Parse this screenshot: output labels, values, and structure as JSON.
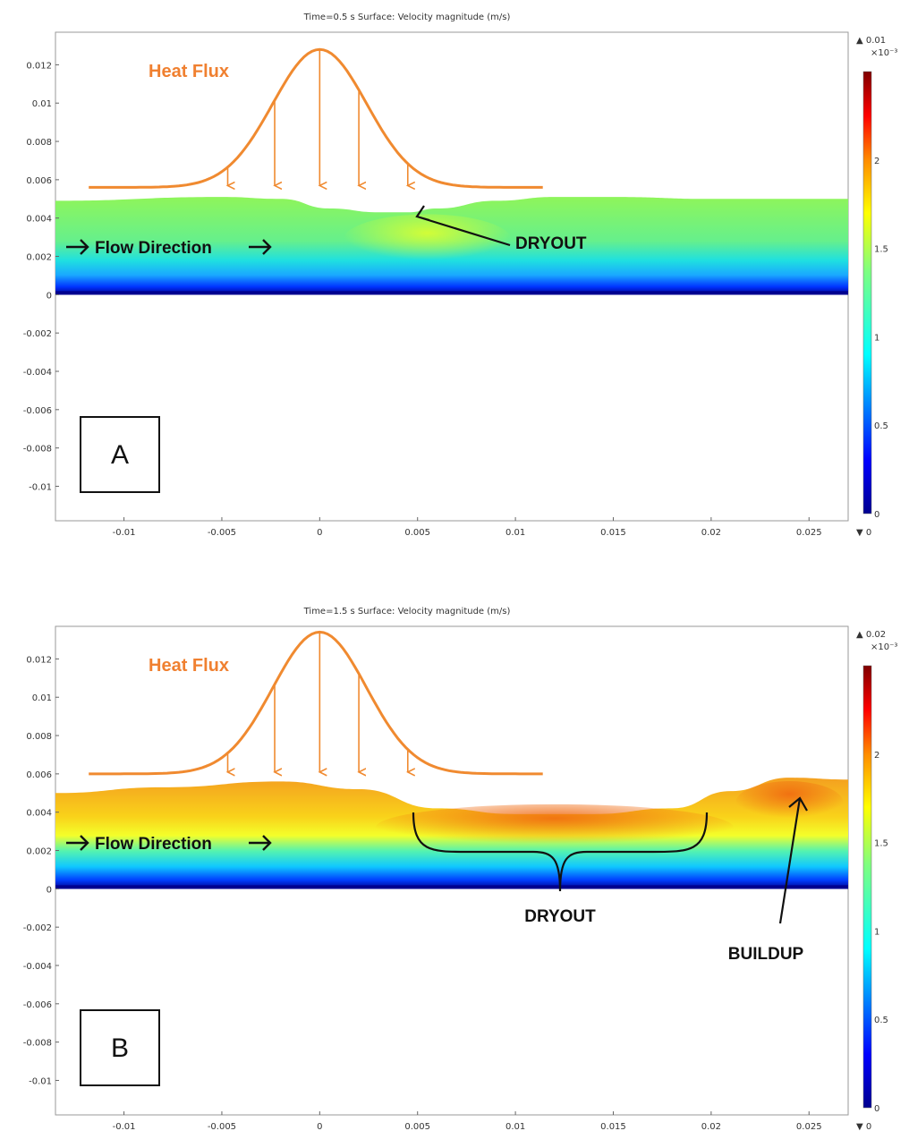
{
  "colors": {
    "heat_flux": "#f08a30",
    "annotation": "#111111",
    "axis_frame": "#9a9a9a"
  },
  "chart_data": [
    {
      "type": "heatmap",
      "panel_label": "A",
      "title": "Time=0.5 s   Surface: Velocity magnitude (m/s)",
      "x_ticks": [
        "-0.01",
        "-0.005",
        "0",
        "0.005",
        "0.01",
        "0.015",
        "0.02",
        "0.025"
      ],
      "y_ticks": [
        "0.012",
        "0.01",
        "0.008",
        "0.006",
        "0.004",
        "0.002",
        "0",
        "-0.002",
        "-0.004",
        "-0.006",
        "-0.008",
        "-0.01"
      ],
      "xlim": [
        -0.0135,
        0.027
      ],
      "ylim": [
        -0.0118,
        0.0137
      ],
      "colorbar": {
        "max_label": "▲ 0.01",
        "exponent": "×10⁻³",
        "min_label": "▼ 0",
        "ticks": [
          "2",
          "1.5",
          "1",
          "0.5",
          "0"
        ],
        "range": [
          0,
          2.5
        ]
      },
      "film_surface": {
        "x": [
          -0.0135,
          -0.005,
          -0.002,
          0.0005,
          0.003,
          0.0045,
          0.006,
          0.009,
          0.012,
          0.015,
          0.02,
          0.027
        ],
        "y": [
          0.0049,
          0.0051,
          0.005,
          0.0045,
          0.0043,
          0.0043,
          0.0045,
          0.0049,
          0.0051,
          0.0051,
          0.005,
          0.005
        ]
      },
      "surface_velocity_1e-3": [
        1.2,
        1.2,
        1.3,
        1.45,
        1.4,
        1.3,
        1.25,
        1.2
      ],
      "heat_flux_curve": {
        "peak_y": 0.0128,
        "base_y": 0.0056,
        "center_x": 0.0,
        "x_start": -0.0118,
        "x_end": 0.0115
      },
      "heat_flux_arrows_x": [
        -0.0047,
        -0.0023,
        0.0,
        0.002,
        0.0045
      ],
      "annotations": {
        "heat_flux": "Heat Flux",
        "flow": "Flow Direction",
        "dryout": "DRYOUT"
      }
    },
    {
      "type": "heatmap",
      "panel_label": "B",
      "title": "Time=1.5 s   Surface: Velocity magnitude (m/s)",
      "x_ticks": [
        "-0.01",
        "-0.005",
        "0",
        "0.005",
        "0.01",
        "0.015",
        "0.02",
        "0.025"
      ],
      "y_ticks": [
        "0.012",
        "0.01",
        "0.008",
        "0.006",
        "0.004",
        "0.002",
        "0",
        "-0.002",
        "-0.004",
        "-0.006",
        "-0.008",
        "-0.01"
      ],
      "xlim": [
        -0.0135,
        0.027
      ],
      "ylim": [
        -0.0118,
        0.0137
      ],
      "colorbar": {
        "max_label": "▲ 0.02",
        "exponent": "×10⁻³",
        "min_label": "▼ 0",
        "ticks": [
          "2",
          "1.5",
          "1",
          "0.5",
          "0"
        ],
        "range": [
          0,
          2.5
        ]
      },
      "film_surface": {
        "x": [
          -0.0135,
          -0.008,
          -0.002,
          0.002,
          0.006,
          0.01,
          0.014,
          0.018,
          0.021,
          0.024,
          0.027
        ],
        "y": [
          0.005,
          0.0053,
          0.0056,
          0.0052,
          0.0042,
          0.0039,
          0.0039,
          0.0042,
          0.0051,
          0.0058,
          0.0057
        ]
      },
      "surface_velocity_1e-3": [
        1.6,
        1.6,
        1.55,
        1.7,
        1.85,
        1.9,
        1.85,
        1.8,
        1.9
      ],
      "heat_flux_curve": {
        "peak_y": 0.0134,
        "base_y": 0.006,
        "center_x": 0.0,
        "x_start": -0.0118,
        "x_end": 0.0115
      },
      "heat_flux_arrows_x": [
        -0.0047,
        -0.0023,
        0.0,
        0.002,
        0.0045
      ],
      "annotations": {
        "heat_flux": "Heat Flux",
        "flow": "Flow Direction",
        "dryout": "DRYOUT",
        "buildup": "BUILDUP"
      }
    }
  ]
}
